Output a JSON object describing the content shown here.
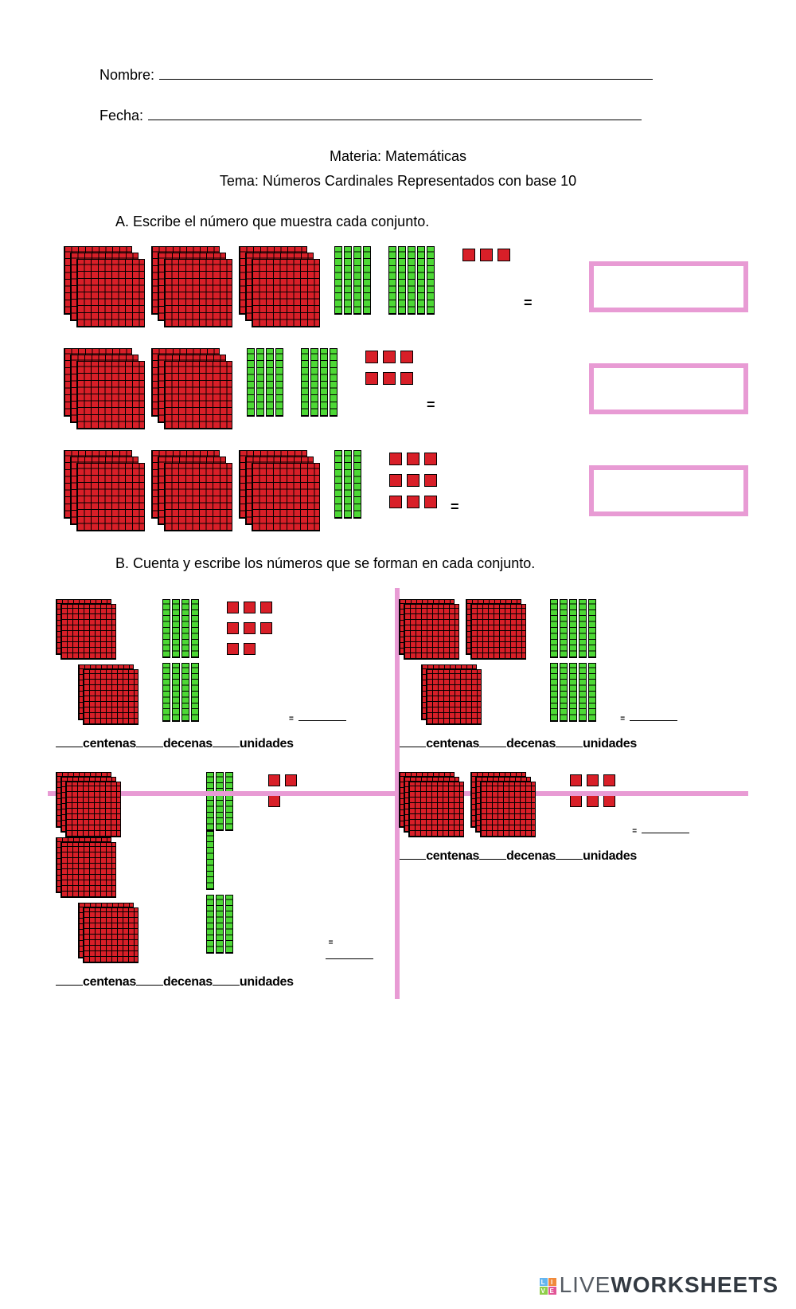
{
  "header": {
    "name_label": "Nombre:",
    "date_label": "Fecha:",
    "subject_line": "Materia: Matemáticas",
    "topic_line": "Tema: Números Cardinales Representados con base 10"
  },
  "section_a": {
    "label": "A.  Escribe el número que muestra cada conjunto.",
    "rows": [
      {
        "hundred_stacks": [
          3,
          3,
          3
        ],
        "tens": [
          4,
          5
        ],
        "ones_rows": [
          3
        ],
        "equals": "="
      },
      {
        "hundred_stacks": [
          3,
          3
        ],
        "tens": [
          4,
          4
        ],
        "ones_rows": [
          3,
          3
        ],
        "equals": "="
      },
      {
        "hundred_stacks": [
          3,
          3,
          3
        ],
        "tens": [
          3
        ],
        "ones_rows": [
          3,
          3,
          3
        ],
        "equals": "="
      }
    ]
  },
  "section_b": {
    "label": "B.  Cuenta y escribe los números que se forman en cada conjunto.",
    "labels": {
      "hundreds": "centenas",
      "tens": "decenas",
      "ones": "unidades"
    },
    "quads": [
      {
        "hundred_stacks_top": [
          2
        ],
        "hundred_stacks_bottom": [
          2
        ],
        "tens_cols": [
          4,
          4
        ],
        "ones_rows": [
          3,
          3,
          2
        ]
      },
      {
        "hundred_stacks_top": [
          2,
          2
        ],
        "hundred_stacks_bottom": [
          2
        ],
        "tens_cols": [
          5,
          5
        ],
        "ones_rows": []
      },
      {
        "hundred_stacks_top": [
          3,
          2
        ],
        "hundred_stacks_bottom": [
          2
        ],
        "tens_cols": [
          4,
          3
        ],
        "ones_rows": [
          3
        ]
      },
      {
        "hundred_stacks_top": [
          3,
          3
        ],
        "hundred_stacks_bottom": [],
        "tens_cols": [],
        "ones_rows": [
          3,
          3
        ]
      }
    ]
  },
  "colors": {
    "hundred_fill": "#d81f28",
    "ten_fill": "#4dd835",
    "one_fill": "#d81f28",
    "answer_border": "#e89bd4",
    "grid_line": "#e89bd4"
  },
  "watermark": {
    "brand_light": "LIVE",
    "brand_bold": "WORKSHEETS",
    "squares": [
      {
        "bg": "#64b5ef",
        "ch": "L"
      },
      {
        "bg": "#f08a3b",
        "ch": "I"
      },
      {
        "bg": "#8fce4a",
        "ch": "V"
      },
      {
        "bg": "#e15596",
        "ch": "E"
      }
    ]
  }
}
